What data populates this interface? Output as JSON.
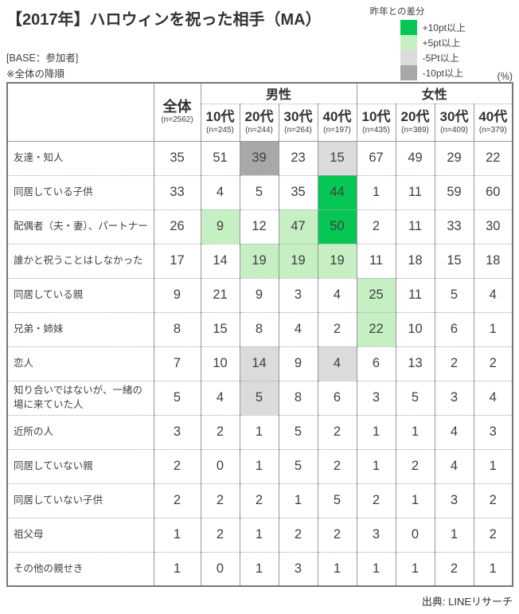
{
  "title": "【2017年】ハロウィンを祝った相手（MA）",
  "base_note": "[BASE：参加者]",
  "sort_note": "※全体の降順",
  "unit_note": "(%)",
  "source_note": "出典: LINEリサーチ",
  "legend": {
    "title": "昨年との差分",
    "items": [
      {
        "key": "plus10",
        "label": "+10pt以上",
        "color": "#06C755"
      },
      {
        "key": "plus5",
        "label": "+5pt以上",
        "color": "#C6EFC4"
      },
      {
        "key": "minus5",
        "label": "-5Pt以上",
        "color": "#DBDBDB"
      },
      {
        "key": "minus10",
        "label": "-10pt以上",
        "color": "#A8A8A8"
      }
    ]
  },
  "table": {
    "overall": {
      "label": "全体",
      "n": "(n=2562)"
    },
    "male_label": "男性",
    "female_label": "女性",
    "age_columns": [
      {
        "label": "10代",
        "n": "(n=245)"
      },
      {
        "label": "20代",
        "n": "(n=244)"
      },
      {
        "label": "30代",
        "n": "(n=264)"
      },
      {
        "label": "40代",
        "n": "(n=197)"
      },
      {
        "label": "10代",
        "n": "(n=435)"
      },
      {
        "label": "20代",
        "n": "(n=389)"
      },
      {
        "label": "30代",
        "n": "(n=409)"
      },
      {
        "label": "40代",
        "n": "(n=379)"
      }
    ]
  },
  "chart_data": {
    "type": "table",
    "title": "【2017年】ハロウィンを祝った相手（MA）",
    "unit": "%",
    "column_groups": [
      "全体",
      "男性",
      "女性"
    ],
    "columns": [
      "全体",
      "男性10代",
      "男性20代",
      "男性30代",
      "男性40代",
      "女性10代",
      "女性20代",
      "女性30代",
      "女性40代"
    ],
    "sample_sizes": [
      2562,
      245,
      244,
      264,
      197,
      435,
      389,
      409,
      379
    ],
    "diff_legend_note": "昨年との差分: plus10=+10pt以上, plus5=+5pt以上, minus5=-5Pt以上, minus10=-10pt以上",
    "rows": [
      {
        "label": "友達・知人",
        "values": [
          35,
          51,
          39,
          23,
          15,
          67,
          49,
          29,
          22
        ],
        "diffs": [
          null,
          null,
          "minus10",
          null,
          "minus5",
          null,
          null,
          null,
          null
        ]
      },
      {
        "label": "同居している子供",
        "values": [
          33,
          4,
          5,
          35,
          44,
          1,
          11,
          59,
          60
        ],
        "diffs": [
          null,
          null,
          null,
          null,
          "plus10",
          null,
          null,
          null,
          null
        ]
      },
      {
        "label": "配偶者（夫・妻）、パートナー",
        "values": [
          26,
          9,
          12,
          47,
          50,
          2,
          11,
          33,
          30
        ],
        "diffs": [
          null,
          "plus5",
          null,
          "plus5",
          "plus10",
          null,
          null,
          null,
          null
        ]
      },
      {
        "label": "誰かと祝うことはしなかった",
        "values": [
          17,
          14,
          19,
          19,
          19,
          11,
          18,
          15,
          18
        ],
        "diffs": [
          null,
          null,
          "plus5",
          "plus5",
          "plus5",
          null,
          null,
          null,
          null
        ]
      },
      {
        "label": "同居している親",
        "values": [
          9,
          21,
          9,
          3,
          4,
          25,
          11,
          5,
          4
        ],
        "diffs": [
          null,
          null,
          null,
          null,
          null,
          "plus5",
          null,
          null,
          null
        ]
      },
      {
        "label": "兄弟・姉妹",
        "values": [
          8,
          15,
          8,
          4,
          2,
          22,
          10,
          6,
          1
        ],
        "diffs": [
          null,
          null,
          null,
          null,
          null,
          "plus5",
          null,
          null,
          null
        ]
      },
      {
        "label": "恋人",
        "values": [
          7,
          10,
          14,
          9,
          4,
          6,
          13,
          2,
          2
        ],
        "diffs": [
          null,
          null,
          "minus5",
          null,
          "minus5",
          null,
          null,
          null,
          null
        ]
      },
      {
        "label": "知り合いではないが、一緒の場に来ていた人",
        "values": [
          5,
          4,
          5,
          8,
          6,
          3,
          5,
          3,
          4
        ],
        "diffs": [
          null,
          null,
          "minus5",
          null,
          null,
          null,
          null,
          null,
          null
        ]
      },
      {
        "label": "近所の人",
        "values": [
          3,
          2,
          1,
          5,
          2,
          1,
          1,
          4,
          3
        ],
        "diffs": [
          null,
          null,
          null,
          null,
          null,
          null,
          null,
          null,
          null
        ]
      },
      {
        "label": "同居していない親",
        "values": [
          2,
          0,
          1,
          5,
          2,
          1,
          2,
          4,
          1
        ],
        "diffs": [
          null,
          null,
          null,
          null,
          null,
          null,
          null,
          null,
          null
        ]
      },
      {
        "label": "同居していない子供",
        "values": [
          2,
          2,
          2,
          1,
          5,
          2,
          1,
          3,
          2
        ],
        "diffs": [
          null,
          null,
          null,
          null,
          null,
          null,
          null,
          null,
          null
        ]
      },
      {
        "label": "祖父母",
        "values": [
          1,
          2,
          1,
          2,
          2,
          3,
          0,
          1,
          2
        ],
        "diffs": [
          null,
          null,
          null,
          null,
          null,
          null,
          null,
          null,
          null
        ]
      },
      {
        "label": "その他の親せき",
        "values": [
          1,
          0,
          1,
          3,
          1,
          1,
          1,
          2,
          1
        ],
        "diffs": [
          null,
          null,
          null,
          null,
          null,
          null,
          null,
          null,
          null
        ]
      }
    ]
  }
}
